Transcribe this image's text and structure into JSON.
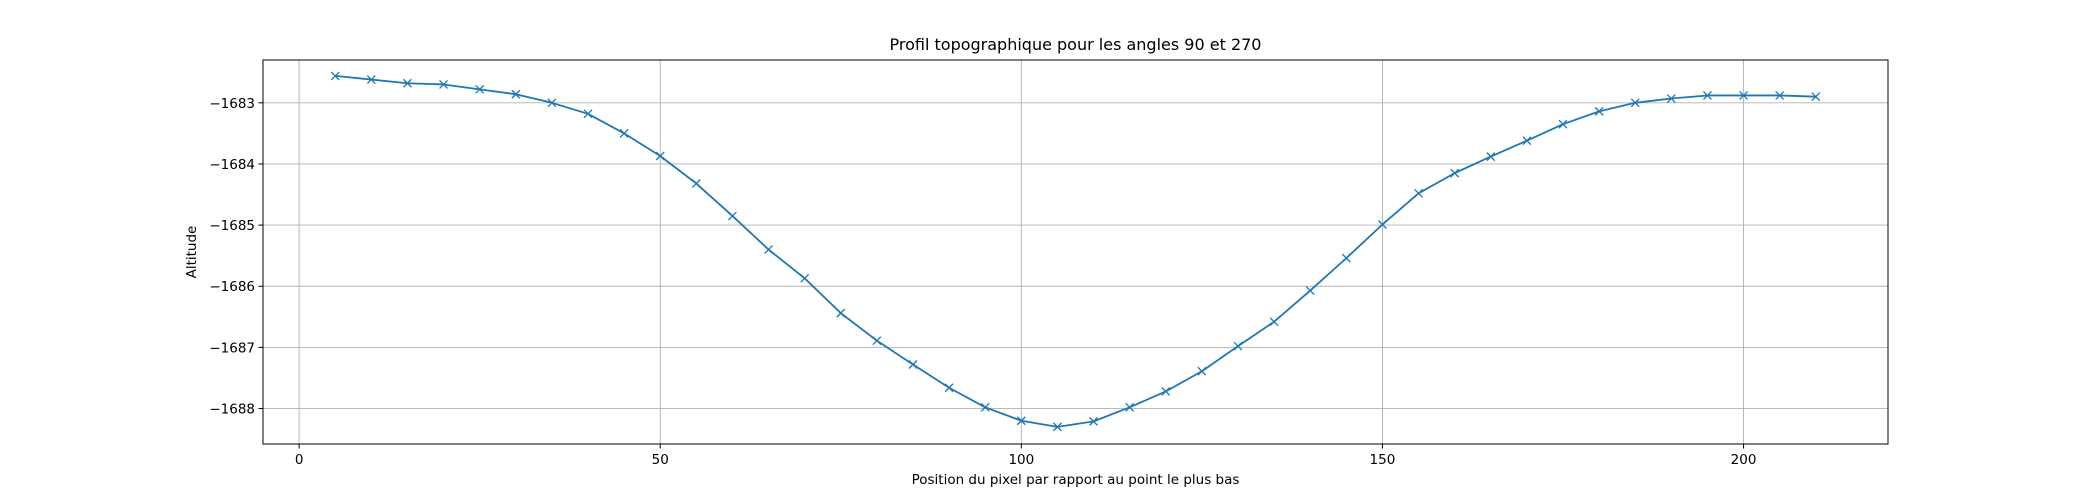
{
  "chart_data": {
    "type": "line",
    "title": "Profil topographique pour les angles 90 et 270",
    "xlabel": "Position du pixel par rapport au point le plus bas",
    "ylabel": "Altitude",
    "xlim": [
      -5,
      220
    ],
    "ylim": [
      -1688.58,
      -1682.3
    ],
    "xticks": [
      0,
      50,
      100,
      150,
      200
    ],
    "xtick_labels": [
      "0",
      "50",
      "100",
      "150",
      "200"
    ],
    "yticks": [
      -1688,
      -1687,
      -1686,
      -1685,
      -1684,
      -1683
    ],
    "ytick_labels": [
      "−1688",
      "−1687",
      "−1686",
      "−1685",
      "−1684",
      "−1683"
    ],
    "grid": true,
    "marker": "x",
    "line_color": "#1f77b4",
    "series": [
      {
        "x": [
          5,
          10,
          15,
          20,
          25,
          30,
          35,
          40,
          45,
          50,
          55,
          60,
          65,
          70,
          75,
          80,
          85,
          90,
          95,
          100,
          105,
          110,
          115,
          120,
          125,
          130,
          135,
          140,
          145,
          150,
          155,
          160,
          165,
          170,
          175,
          180,
          185,
          190,
          195,
          200,
          205,
          210
        ],
        "values": [
          -1682.56,
          -1682.62,
          -1682.68,
          -1682.7,
          -1682.78,
          -1682.86,
          -1683.0,
          -1683.18,
          -1683.5,
          -1683.87,
          -1684.32,
          -1684.85,
          -1685.4,
          -1685.87,
          -1686.44,
          -1686.89,
          -1687.28,
          -1687.66,
          -1687.98,
          -1688.2,
          -1688.3,
          -1688.21,
          -1687.98,
          -1687.72,
          -1687.39,
          -1686.98,
          -1686.58,
          -1686.07,
          -1685.54,
          -1684.99,
          -1684.48,
          -1684.15,
          -1683.88,
          -1683.62,
          -1683.35,
          -1683.14,
          -1683.0,
          -1682.93,
          -1682.88,
          -1682.88,
          -1682.88,
          -1682.9
        ]
      }
    ]
  }
}
